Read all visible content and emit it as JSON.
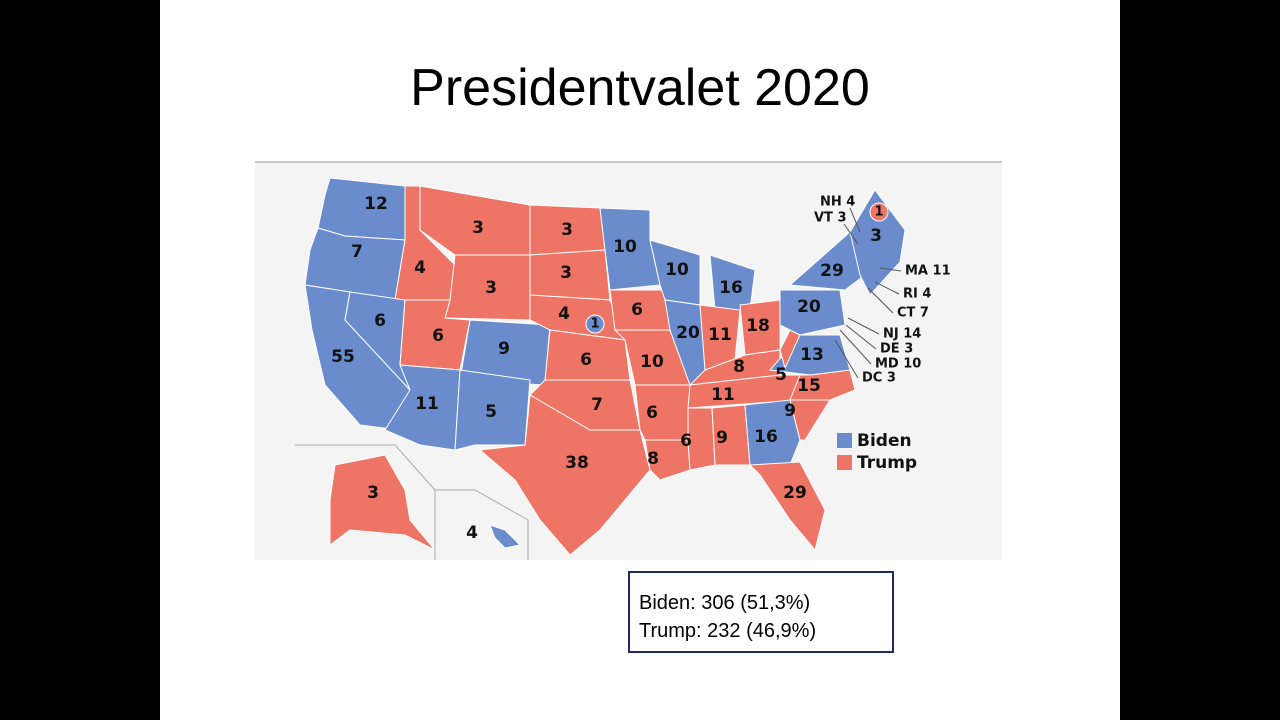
{
  "title": "Presidentvalet 2020",
  "map": {
    "labels": [
      "12",
      "7",
      "4",
      "3",
      "3",
      "3",
      "3",
      "6",
      "6",
      "55",
      "9",
      "4",
      "1",
      "6",
      "6",
      "10",
      "10",
      "16",
      "20",
      "11",
      "18",
      "8",
      "5",
      "20",
      "29",
      "13",
      "15",
      "11",
      "9",
      "10",
      "7",
      "6",
      "11",
      "5",
      "38",
      "8",
      "6",
      "9",
      "16",
      "29",
      "3",
      "4",
      "1",
      "3"
    ],
    "callouts": [
      "NH 4",
      "VT 3",
      "MA 11",
      "RI 4",
      "CT 7",
      "NJ 14",
      "DE 3",
      "MD 10",
      "DC 3"
    ],
    "legend": [
      "Biden",
      "Trump"
    ]
  },
  "summary": [
    "Biden: 306 (51,3%)",
    "Trump: 232 (46,9%)"
  ]
}
